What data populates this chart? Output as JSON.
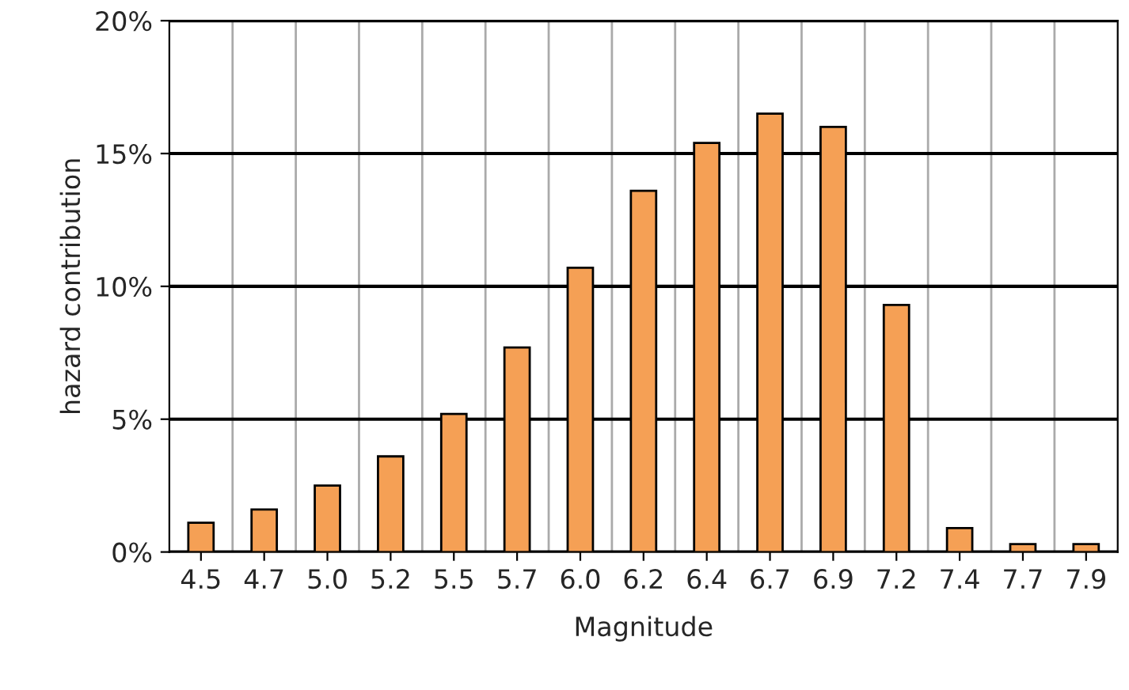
{
  "chart_data": {
    "type": "bar",
    "xlabel": "Magnitude",
    "ylabel": "hazard contribution",
    "categories": [
      "4.5",
      "4.7",
      "5.0",
      "5.2",
      "5.5",
      "5.7",
      "6.0",
      "6.2",
      "6.4",
      "6.7",
      "6.9",
      "7.2",
      "7.4",
      "7.7",
      "7.9"
    ],
    "values": [
      1.1,
      1.6,
      2.5,
      3.6,
      5.2,
      7.7,
      10.7,
      13.6,
      15.4,
      16.5,
      16.0,
      9.3,
      0.9,
      0.3,
      0.3
    ],
    "color": "#f5a055",
    "ylim": [
      0,
      20
    ],
    "yticks": [
      {
        "value": 0,
        "label": "0%"
      },
      {
        "value": 5,
        "label": "5%"
      },
      {
        "value": 10,
        "label": "10%"
      },
      {
        "value": 15,
        "label": "15%"
      },
      {
        "value": 20,
        "label": "20%"
      }
    ],
    "grid": true
  }
}
